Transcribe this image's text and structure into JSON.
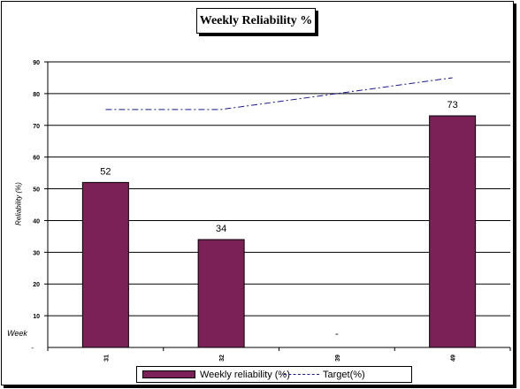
{
  "chart_data": {
    "type": "bar",
    "title": "Weekly Reliability %",
    "ylabel": "Reliability (%)",
    "xlabel": "Week",
    "ylim": [
      0,
      90
    ],
    "yticks": [
      10,
      20,
      30,
      40,
      50,
      60,
      70,
      80,
      90
    ],
    "zero_tick_label": "-",
    "categories": [
      "31",
      "32",
      "39",
      "49"
    ],
    "series": [
      {
        "name": "Weekly reliability (%)",
        "type": "bar",
        "color": "#7b2157",
        "values": [
          52,
          34,
          0,
          73
        ],
        "labels": [
          "52",
          "34",
          "-",
          "73"
        ]
      },
      {
        "name": "Target(%)",
        "type": "line",
        "style": "dash-dot",
        "color": "#1a1a8c",
        "values": [
          75,
          75,
          80,
          85
        ]
      }
    ],
    "grid": true,
    "legend": "bottom"
  }
}
